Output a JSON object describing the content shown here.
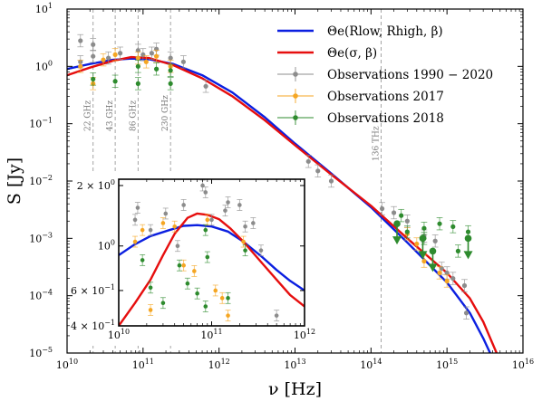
{
  "chart_data": [
    {
      "type": "scatter",
      "xscale": "log",
      "yscale": "log",
      "xlim": [
        10000000000.0,
        1e+16
      ],
      "ylim": [
        1e-05,
        10
      ],
      "xlabel": "ν [Hz]",
      "ylabel": "S [Jy]",
      "xticks": [
        {
          "b": "10",
          "e": "10",
          "v": 10000000000.0
        },
        {
          "b": "10",
          "e": "11",
          "v": 100000000000.0
        },
        {
          "b": "10",
          "e": "12",
          "v": 1000000000000.0
        },
        {
          "b": "10",
          "e": "13",
          "v": 10000000000000.0
        },
        {
          "b": "10",
          "e": "14",
          "v": 100000000000000.0
        },
        {
          "b": "10",
          "e": "15",
          "v": 1000000000000000.0
        },
        {
          "b": "10",
          "e": "16",
          "v": 1e+16
        }
      ],
      "yticks": [
        {
          "b": "10",
          "e": "−5",
          "v": 1e-05
        },
        {
          "b": "10",
          "e": "−4",
          "v": 0.0001
        },
        {
          "b": "10",
          "e": "−3",
          "v": 0.001
        },
        {
          "b": "10",
          "e": "−2",
          "v": 0.01
        },
        {
          "b": "10",
          "e": "−1",
          "v": 0.1
        },
        {
          "b": "10",
          "e": "0",
          "v": 1
        },
        {
          "b": "10",
          "e": "1",
          "v": 10
        }
      ],
      "vlines": [
        {
          "x": 22000000000.0,
          "label": "22 GHz"
        },
        {
          "x": 43000000000.0,
          "label": "43 GHz"
        },
        {
          "x": 86000000000.0,
          "label": "86 GHz"
        },
        {
          "x": 230000000000.0,
          "label": "230 GHz"
        },
        {
          "x": 136000000000000.0,
          "label": "136 THz"
        }
      ],
      "legend": [
        {
          "text": "Θe(Rlow, Rhigh, β)",
          "color": "#0b1fe0",
          "kind": "line"
        },
        {
          "text": "Θe(σ, β)",
          "color": "#e60e0e",
          "kind": "line"
        },
        {
          "text": "Observations 1990 − 2020",
          "color": "#8c8c8c",
          "kind": "point"
        },
        {
          "text": "Observations 2017",
          "color": "#f5a623",
          "kind": "point"
        },
        {
          "text": "Observations 2018",
          "color": "#2e8b2e",
          "kind": "point"
        }
      ],
      "series": [
        {
          "name": "Θe(Rlow, Rhigh, β)",
          "color": "#0b1fe0",
          "kind": "line",
          "x": [
            10000000000.0,
            20000000000.0,
            40000000000.0,
            70000000000.0,
            120000000000.0,
            250000000000.0,
            600000000000.0,
            1500000000000.0,
            4000000000000.0,
            10000000000000.0,
            30000000000000.0,
            100000000000000.0,
            300000000000000.0,
            1000000000000000.0,
            2000000000000000.0,
            3000000000000000.0,
            4000000000000000.0
          ],
          "y": [
            0.9,
            1.1,
            1.3,
            1.37,
            1.33,
            1.1,
            0.7,
            0.35,
            0.13,
            0.045,
            0.0135,
            0.0035,
            0.00085,
            0.00017,
            5e-05,
            1.8e-05,
            8e-06
          ]
        },
        {
          "name": "Θe(σ, β)",
          "color": "#e60e0e",
          "kind": "line",
          "x": [
            10000000000.0,
            20000000000.0,
            40000000000.0,
            70000000000.0,
            120000000000.0,
            250000000000.0,
            600000000000.0,
            1500000000000.0,
            4000000000000.0,
            10000000000000.0,
            30000000000000.0,
            100000000000000.0,
            300000000000000.0,
            1000000000000000.0,
            2000000000000000.0,
            3000000000000000.0,
            4500000000000000.0
          ],
          "y": [
            0.7,
            0.95,
            1.25,
            1.45,
            1.4,
            1.05,
            0.62,
            0.3,
            0.115,
            0.042,
            0.013,
            0.0037,
            0.001,
            0.00025,
            9e-05,
            3.5e-05,
            1e-05
          ]
        },
        {
          "name": "Observations 1990 − 2020",
          "color": "#8c8c8c",
          "kind": "point",
          "x": [
            15000000000.0,
            15000000000.0,
            22000000000.0,
            22000000000.0,
            35000000000.0,
            50000000000.0,
            86000000000.0,
            100000000000.0,
            130000000000.0,
            150000000000.0,
            230000000000.0,
            340000000000.0,
            670000000000.0,
            15000000000000.0,
            20000000000000.0,
            30000000000000.0,
            140000000000000.0,
            200000000000000.0,
            300000000000000.0,
            500000000000000.0,
            700000000000000.0,
            850000000000000.0,
            1000000000000000.0,
            1200000000000000.0,
            1700000000000000.0,
            1800000000000000.0
          ],
          "y": [
            2.8,
            1.2,
            2.4,
            1.5,
            1.4,
            1.7,
            1.9,
            1.6,
            1.7,
            2.0,
            1.4,
            1.2,
            0.45,
            0.022,
            0.015,
            0.01,
            0.0033,
            0.0028,
            0.002,
            0.0011,
            0.0009,
            0.0003,
            0.00025,
            0.0002,
            0.00015,
            5e-05
          ]
        },
        {
          "name": "Observations 2017",
          "color": "#f5a623",
          "kind": "point",
          "x": [
            15000000000.0,
            22000000000.0,
            30000000000.0,
            43000000000.0,
            86000000000.0,
            110000000000.0,
            150000000000.0,
            230000000000.0,
            300000000000000.0,
            400000000000000.0,
            500000000000000.0,
            800000000000000.0,
            1000000000000000.0
          ],
          "y": [
            1.0,
            0.5,
            1.3,
            1.6,
            1.4,
            1.2,
            1.5,
            1.0,
            0.0012,
            0.0008,
            0.0004,
            0.00025,
            0.00018
          ]
        },
        {
          "name": "Observations 2018",
          "color": "#2e8b2e",
          "kind": "point",
          "x": [
            22000000000.0,
            43000000000.0,
            86000000000.0,
            86000000000.0,
            150000000000.0,
            230000000000.0,
            230000000000.0,
            250000000000000.0,
            300000000000000.0,
            500000000000000.0,
            500000000000000.0,
            800000000000000.0,
            1200000000000000.0,
            1400000000000000.0,
            1900000000000000.0
          ],
          "y": [
            0.6,
            0.55,
            0.5,
            1.0,
            0.9,
            0.85,
            0.5,
            0.0025,
            0.0013,
            0.0015,
            0.001,
            0.0018,
            0.0016,
            0.0006,
            0.0013
          ]
        },
        {
          "name": "upper limits",
          "color": "#2e8b2e",
          "kind": "upperlimit",
          "x": [
            220000000000000.0,
            480000000000000.0,
            650000000000000.0,
            1900000000000000.0
          ],
          "y": [
            0.0018,
            0.001,
            0.0006,
            0.001
          ]
        }
      ]
    },
    {
      "type": "scatter",
      "inset": true,
      "xscale": "log",
      "yscale": "log",
      "xlim": [
        10000000000.0,
        1000000000000.0
      ],
      "ylim": [
        0.4,
        2.15
      ],
      "xticks": [
        {
          "b": "10",
          "e": "10",
          "v": 10000000000.0
        },
        {
          "b": "10",
          "e": "11",
          "v": 100000000000.0
        },
        {
          "b": "10",
          "e": "12",
          "v": 1000000000000.0
        }
      ],
      "yticks": [
        {
          "t": "4 × 10",
          "e": "−1",
          "v": 0.4
        },
        {
          "t": "6 × 10",
          "e": "−1",
          "v": 0.6
        },
        {
          "t": "10",
          "e": "0",
          "v": 1.0
        },
        {
          "t": "2 × 10",
          "e": "0",
          "v": 2.0
        }
      ],
      "series": [
        {
          "name": "Θe(Rlow, Rhigh, β)",
          "color": "#0b1fe0",
          "kind": "line",
          "x": [
            10000000000.0,
            15000000000.0,
            22000000000.0,
            35000000000.0,
            50000000000.0,
            70000000000.0,
            100000000000.0,
            150000000000.0,
            220000000000.0,
            350000000000.0,
            500000000000.0,
            700000000000.0,
            1000000000000.0
          ],
          "y": [
            0.9,
            1.02,
            1.12,
            1.2,
            1.26,
            1.27,
            1.25,
            1.18,
            1.05,
            0.88,
            0.76,
            0.67,
            0.6
          ]
        },
        {
          "name": "Θe(σ, β)",
          "color": "#e60e0e",
          "kind": "line",
          "x": [
            10000000000.0,
            15000000000.0,
            22000000000.0,
            30000000000.0,
            40000000000.0,
            55000000000.0,
            70000000000.0,
            90000000000.0,
            120000000000.0,
            160000000000.0,
            220000000000.0,
            350000000000.0,
            500000000000.0,
            700000000000.0,
            1000000000000.0
          ],
          "y": [
            0.4,
            0.52,
            0.68,
            0.9,
            1.15,
            1.38,
            1.45,
            1.43,
            1.36,
            1.22,
            1.05,
            0.82,
            0.68,
            0.57,
            0.5
          ]
        },
        {
          "name": "Observations 1990 − 2020",
          "color": "#8c8c8c",
          "kind": "point",
          "x": [
            15000000000.0,
            16000000000.0,
            22000000000.0,
            32000000000.0,
            43000000000.0,
            50000000000.0,
            80000000000.0,
            86000000000.0,
            100000000000.0,
            140000000000.0,
            150000000000.0,
            200000000000.0,
            230000000000.0,
            280000000000.0,
            340000000000.0,
            500000000000.0
          ],
          "y": [
            1.35,
            1.55,
            1.2,
            1.45,
            1.0,
            1.6,
            2.0,
            1.85,
            1.35,
            1.5,
            1.65,
            1.6,
            1.25,
            1.3,
            0.95,
            0.45
          ]
        },
        {
          "name": "Observations 2017",
          "color": "#f5a623",
          "kind": "point",
          "x": [
            15000000000.0,
            18000000000.0,
            22000000000.0,
            30000000000.0,
            40000000000.0,
            50000000000.0,
            65000000000.0,
            90000000000.0,
            110000000000.0,
            130000000000.0,
            150000000000.0,
            220000000000.0
          ],
          "y": [
            1.05,
            1.2,
            0.48,
            1.3,
            1.25,
            0.8,
            0.75,
            1.35,
            0.6,
            0.55,
            0.45,
            1.05
          ]
        },
        {
          "name": "Observations 2018",
          "color": "#2e8b2e",
          "kind": "point",
          "x": [
            18000000000.0,
            22000000000.0,
            30000000000.0,
            45000000000.0,
            55000000000.0,
            70000000000.0,
            86000000000.0,
            86000000000.0,
            90000000000.0,
            150000000000.0,
            230000000000.0
          ],
          "y": [
            0.85,
            0.62,
            0.52,
            0.8,
            0.65,
            0.58,
            1.2,
            0.5,
            0.88,
            0.55,
            0.95
          ]
        }
      ]
    }
  ]
}
